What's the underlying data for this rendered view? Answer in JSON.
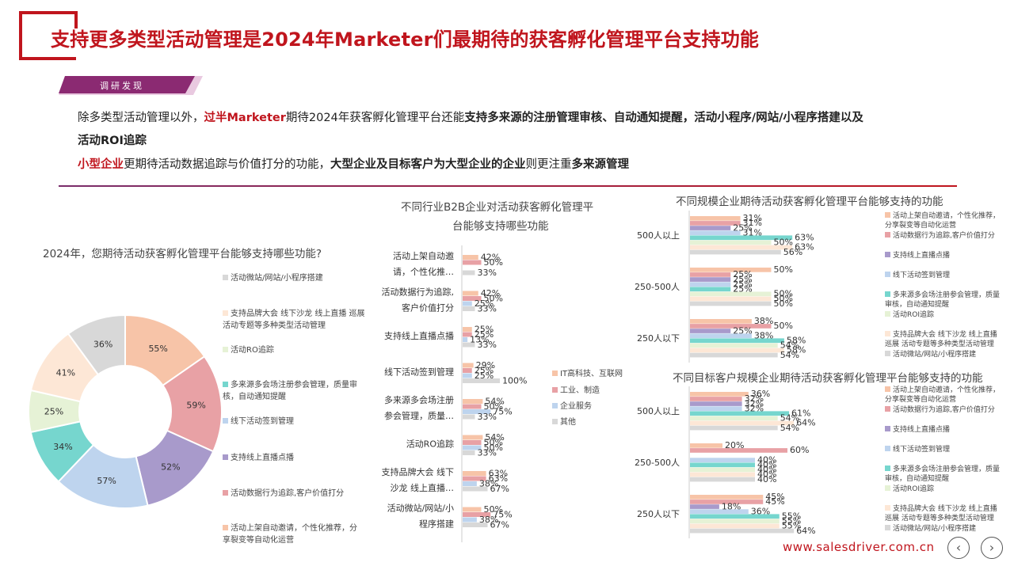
{
  "title": "支持更多类型活动管理是2024年Marketer们最期待的获客孵化管理平台支持功能",
  "badge": "调研发现",
  "para": {
    "l1a": "除多类型活动管理以外，",
    "l1b": "过半Marketer",
    "l1c": "期待2024年获客孵化管理平台还能",
    "l1d": "支持多来源的注册管理审核、自动通知提醒，活动小程序/网站/小程序搭建以及",
    "l2": "活动ROI追踪",
    "l3a": "小型企业",
    "l3b": "更期待活动数据追踪与价值打分的功能，",
    "l3c": "大型企业及目标客户为大型企业的企业",
    "l3d": "则更注重",
    "l3e": "多来源管理"
  },
  "colors": {
    "red": "#c0151d",
    "purple": "#7a2d6b",
    "s1": "#f7c4a8",
    "s2": "#e8a1a5",
    "s3": "#a89acb",
    "s4": "#bed4ee",
    "s5": "#76d6ce",
    "s6": "#e6f2d6",
    "s7": "#fde7d6",
    "s8": "#d8d8d8"
  },
  "website": "www.salesdriver.com.cn",
  "chart_data": [
    {
      "type": "pie",
      "title": "2024年，您期待活动获客孵化管理平台能够支持哪些功能?",
      "categories": [
        "活动上架自动邀请，个性化推荐，分享裂变等自动化运营",
        "活动数据行为追踪,客户价值打分",
        "支持线上直播点播",
        "线下活动签到管理",
        "多来源多会场注册参会管理，质量审核，自动通知提醒",
        "活动ROI追踪",
        "支持品牌大会 线下沙龙 线上直播 巡展 活动专题等多种类型活动管理",
        "活动微站/网站/小程序搭建"
      ],
      "values": [
        55,
        59,
        52,
        57,
        34,
        25,
        41,
        36
      ],
      "value_labels": [
        "55%",
        "59%",
        "52%",
        "57%",
        "34%",
        "25%",
        "41%",
        "36%"
      ],
      "legend": [
        "活动微站/网站/小程序搭建",
        "支持品牌大会 线下沙龙 线上直播 巡展活动专题等多种类型活动管理",
        "活动ROI追踪",
        "多来源多会场注册参会管理，质量审核，自动通知提醒",
        "线下活动签到管理",
        "支持线上直播点播",
        "活动数据行为追踪,客户价值打分",
        "活动上架自动邀请，个性化推荐，分享裂变等自动化运营"
      ]
    },
    {
      "type": "bar",
      "title": "不同行业B2B企业对活动获客孵化管理平台能够支持哪些功能",
      "title_lines": [
        "不同行业B2B企业对活动获客孵化管理平",
        "台能够支持哪些功能"
      ],
      "categories": [
        [
          "活动上架自动邀",
          "请，个性化推…"
        ],
        [
          "活动数据行为追踪,",
          "客户价值打分"
        ],
        [
          "支持线上直播点播"
        ],
        [
          "线下活动签到管理"
        ],
        [
          "多来源多会场注册",
          "参会管理，质量…"
        ],
        [
          "活动RO追踪"
        ],
        [
          "支持品牌大会 线下",
          "沙龙 线上直播…"
        ],
        [
          "活动微站/网站/小",
          "程序搭建"
        ]
      ],
      "series": [
        {
          "name": "IT高科技、互联网",
          "values": [
            42,
            42,
            25,
            29,
            54,
            54,
            63,
            50
          ]
        },
        {
          "name": "工业、制造",
          "values": [
            50,
            50,
            25,
            25,
            50,
            50,
            63,
            75
          ]
        },
        {
          "name": "企业服务",
          "values": [
            null,
            25,
            13,
            25,
            75,
            50,
            38,
            38
          ]
        },
        {
          "name": "其他",
          "values": [
            33,
            33,
            33,
            100,
            33,
            33,
            67,
            67
          ]
        }
      ],
      "value_labels": [
        [
          "42%",
          "50%",
          null,
          "33%"
        ],
        [
          "42%",
          "50%",
          "25%",
          "33%"
        ],
        [
          "25%",
          "25%",
          "13%",
          "33%"
        ],
        [
          "29%",
          "25%",
          "25%",
          "100%"
        ],
        [
          "54%",
          "50%",
          "75%",
          "33%"
        ],
        [
          "54%",
          "50%",
          "50%",
          "33%"
        ],
        [
          "63%",
          "63%",
          "38%",
          "67%"
        ],
        [
          "50%",
          "75%",
          "38%",
          "67%"
        ]
      ],
      "legend": [
        "IT高科技、互联网",
        "工业、制造",
        "企业服务",
        "其他"
      ]
    },
    {
      "type": "bar",
      "title": "不同规模企业期待活动获客孵化管理平台能够支持的功能",
      "categories": [
        "500人以上",
        "250-500人",
        "250人以下"
      ],
      "series_names": [
        "活动上架自动邀请，个性化推荐，分享裂变等自动化运营",
        "活动数据行为追踪,客户价值打分",
        "支持线上直播点播",
        "线下活动签到管理",
        "多来源多会场注册参会管理，质量审核，自动通知提醒",
        "活动ROI追踪",
        "支持品牌大会 线下沙龙 线上直播 巡展 活动专题等多种类型活动管理",
        "活动微站/网站/小程序搭建"
      ],
      "values": [
        [
          31,
          31,
          25,
          31,
          63,
          50,
          63,
          56
        ],
        [
          50,
          25,
          25,
          25,
          25,
          50,
          50,
          50
        ],
        [
          38,
          50,
          25,
          38,
          58,
          54,
          58,
          54
        ]
      ],
      "value_labels": [
        [
          "31%",
          "31%",
          "25%",
          "31%",
          "63%",
          "50%",
          "63%",
          "56%"
        ],
        [
          "50%",
          "25%",
          "25%",
          "25%",
          "25%",
          "50%",
          "50%",
          "50%"
        ],
        [
          "38%",
          "50%",
          "25%",
          "38%",
          "58%",
          "54%",
          "58%",
          "54%"
        ]
      ],
      "legend": [
        "活动上架自动邀请，个性化推荐，分享裂变等自动化运营",
        "活动数据行为追踪,客户价值打分",
        "支持线上直播点播",
        "线下活动签到管理",
        "多来源多会场注册参会管理，质量审核，自动通知提醒",
        "活动ROI追踪",
        "支持品牌大会 线下沙龙 线上直播 巡展 活动专题等多种类型活动管理",
        "活动微站/网站/小程序搭建"
      ]
    },
    {
      "type": "bar",
      "title": "不同目标客户规模企业期待活动获客孵化管理平台能够支持的功能",
      "categories": [
        "500人以上",
        "250-500人",
        "250人以下"
      ],
      "series_names": [
        "活动上架自动邀请，个性化推荐，分享裂变等自动化运营",
        "活动数据行为追踪,客户价值打分",
        "支持线上直播点播",
        "线下活动签到管理",
        "多来源多会场注册参会管理，质量审核，自动通知提醒",
        "活动ROI追踪",
        "支持品牌大会 线下沙龙 线上直播 巡展 活动专题等多种类型活动管理",
        "活动微站/网站/小程序搭建"
      ],
      "values": [
        [
          36,
          32,
          32,
          32,
          61,
          54,
          64,
          54
        ],
        [
          20,
          60,
          null,
          40,
          40,
          40,
          40,
          40
        ],
        [
          45,
          45,
          18,
          36,
          55,
          55,
          55,
          64
        ]
      ],
      "value_labels": [
        [
          "36%",
          "32%",
          "32%",
          "32%",
          "61%",
          "54%",
          "64%",
          "54%"
        ],
        [
          "20%",
          "60%",
          null,
          "40%",
          "40%",
          "40%",
          "40%",
          "40%"
        ],
        [
          "45%",
          "45%",
          "18%",
          "36%",
          "55%",
          "55%",
          "55%",
          "64%"
        ]
      ],
      "legend": [
        "活动上架自动邀请，个性化推荐，分享裂变等自动化运营",
        "活动数据行为追踪,客户价值打分",
        "支持线上直播点播",
        "线下活动签到管理",
        "多来源多会场注册参会管理，质量审核，自动通知提醒",
        "活动ROI追踪",
        "支持品牌大会 线下沙龙 线上直播 巡展 活动专题等多种类型活动管理",
        "活动微站/网站/小程序搭建"
      ]
    }
  ]
}
